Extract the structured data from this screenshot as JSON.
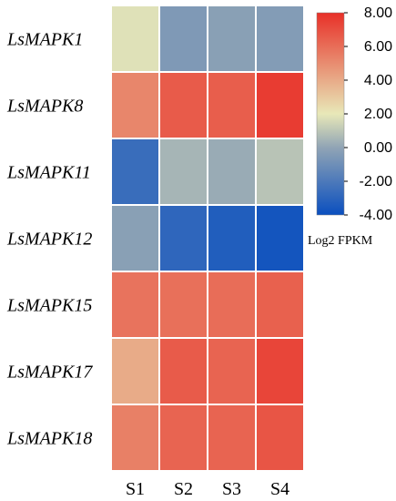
{
  "chart_data": {
    "type": "heatmap",
    "rows": [
      "LsMAPK1",
      "LsMAPK8",
      "LsMAPK11",
      "LsMAPK12",
      "LsMAPK15",
      "LsMAPK17",
      "LsMAPK18"
    ],
    "columns": [
      "S1",
      "S2",
      "S3",
      "S4"
    ],
    "values": [
      [
        1.8,
        -0.5,
        -0.2,
        -0.4
      ],
      [
        5.2,
        6.6,
        6.5,
        7.6
      ],
      [
        -2.6,
        0.5,
        0.2,
        0.9
      ],
      [
        -0.2,
        -2.9,
        -3.3,
        -3.7
      ],
      [
        5.8,
        5.9,
        6.0,
        6.4
      ],
      [
        4.0,
        6.6,
        6.3,
        7.3
      ],
      [
        5.4,
        6.3,
        6.3,
        6.8
      ]
    ],
    "colorbar": {
      "title": "Log2 FPKM",
      "min": -4.0,
      "max": 8.0,
      "ticks": [
        "8.00",
        "6.00",
        "4.00",
        "2.00",
        "0.00",
        "-2.00",
        "-4.00"
      ],
      "colors": [
        "#0a4fbf",
        "#90a4b5",
        "#e8e8b8",
        "#e83028"
      ]
    },
    "legend": "top-right",
    "grid": true,
    "cell_border_color": "#ffffff"
  }
}
